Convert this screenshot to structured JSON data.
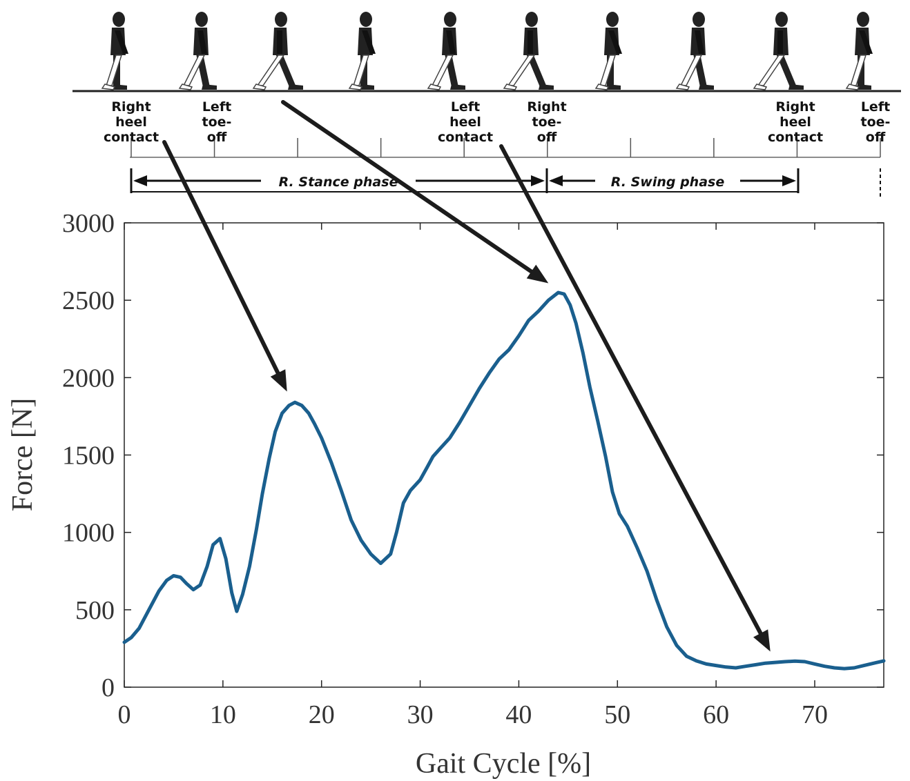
{
  "gait_events": [
    {
      "lines": [
        "Right",
        "heel",
        "contact"
      ],
      "x": 0
    },
    {
      "lines": [
        "Left",
        "toe-",
        "off"
      ],
      "x": 9
    },
    {
      "lines": [
        "Left",
        "heel",
        "contact"
      ],
      "x": 35
    },
    {
      "lines": [
        "Right",
        "toe-",
        "off"
      ],
      "x": 43
    },
    {
      "lines": [
        "Right",
        "heel",
        "contact"
      ],
      "x": 68
    },
    {
      "lines": [
        "Left",
        "toe-",
        "off"
      ],
      "x": 76
    }
  ],
  "phases": {
    "stance": "R. Stance phase",
    "swing": "R. Swing phase"
  },
  "chart_data": {
    "type": "line",
    "title": "",
    "xlabel": "Gait Cycle [%]",
    "ylabel": "Force [N]",
    "xlim": [
      0,
      77
    ],
    "ylim": [
      0,
      3000
    ],
    "xticks": [
      0,
      10,
      20,
      30,
      40,
      50,
      60,
      70
    ],
    "yticks": [
      0,
      500,
      1000,
      1500,
      2000,
      2500,
      3000
    ],
    "grid": false,
    "line_color": "#1a5f8e",
    "series": [
      {
        "x": [
          0,
          0.7,
          1.5,
          2.5,
          3.5,
          4.3,
          5,
          5.7,
          6.3,
          7,
          7.7,
          8.4,
          9,
          9.7,
          10.3,
          10.9,
          11.4,
          12,
          12.7,
          13.4,
          14,
          14.7,
          15.3,
          16,
          16.7,
          17.3,
          18,
          18.7,
          19.3,
          20,
          21,
          22,
          23,
          24,
          25,
          26,
          27,
          27.6,
          28.3,
          29,
          30,
          30.7,
          31.3,
          32,
          33,
          34,
          35,
          36,
          37,
          38,
          39,
          40,
          41,
          42,
          43,
          44,
          44.6,
          45.2,
          45.8,
          46.5,
          47.2,
          48,
          48.8,
          49.5,
          50.2,
          51,
          52,
          53,
          54,
          55,
          56,
          57,
          58,
          59,
          60,
          61,
          62,
          63,
          64,
          65,
          66,
          67,
          68,
          69,
          70,
          71,
          72,
          73,
          74,
          75,
          76,
          77
        ],
        "y": [
          290,
          320,
          380,
          500,
          620,
          690,
          720,
          710,
          670,
          630,
          660,
          780,
          920,
          960,
          830,
          610,
          490,
          600,
          780,
          1020,
          1250,
          1480,
          1650,
          1770,
          1820,
          1840,
          1820,
          1770,
          1700,
          1610,
          1450,
          1270,
          1080,
          950,
          860,
          800,
          860,
          1000,
          1190,
          1270,
          1340,
          1420,
          1490,
          1540,
          1610,
          1710,
          1820,
          1930,
          2030,
          2120,
          2180,
          2270,
          2370,
          2430,
          2500,
          2550,
          2540,
          2470,
          2350,
          2160,
          1940,
          1720,
          1490,
          1260,
          1120,
          1040,
          900,
          750,
          560,
          390,
          270,
          200,
          170,
          150,
          140,
          130,
          125,
          135,
          145,
          155,
          160,
          165,
          168,
          165,
          150,
          135,
          125,
          120,
          125,
          140,
          155,
          170
        ]
      }
    ],
    "annotations": [
      {
        "type": "arrow",
        "from_event": 0,
        "to_data": [
          16.5,
          1910
        ]
      },
      {
        "type": "arrow",
        "from_event": 2,
        "to_data": [
          43,
          2610
        ]
      },
      {
        "type": "arrow",
        "from_event": 3,
        "to_data": [
          65.5,
          230
        ]
      }
    ]
  }
}
